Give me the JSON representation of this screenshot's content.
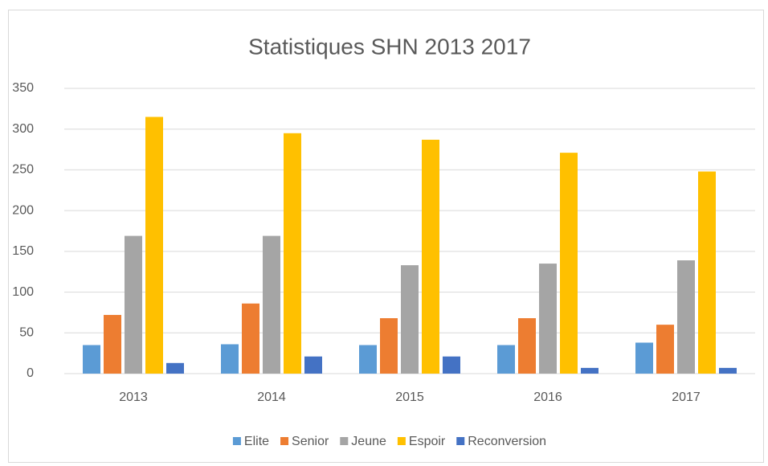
{
  "chart_data": {
    "type": "bar",
    "title": "Statistiques SHN 2013 2017",
    "categories": [
      "2013",
      "2014",
      "2015",
      "2016",
      "2017"
    ],
    "series": [
      {
        "name": "Elite",
        "color": "#5b9bd5",
        "values": [
          35,
          36,
          35,
          35,
          38
        ]
      },
      {
        "name": "Senior",
        "color": "#ed7d31",
        "values": [
          72,
          86,
          68,
          68,
          60
        ]
      },
      {
        "name": "Jeune",
        "color": "#a5a5a5",
        "values": [
          169,
          169,
          133,
          135,
          139
        ]
      },
      {
        "name": "Espoir",
        "color": "#ffc000",
        "values": [
          315,
          295,
          287,
          271,
          248
        ]
      },
      {
        "name": "Reconversion",
        "color": "#4472c4",
        "values": [
          13,
          21,
          21,
          7,
          7
        ]
      }
    ],
    "ylim": [
      0,
      350
    ],
    "yticks": [
      0,
      50,
      100,
      150,
      200,
      250,
      300,
      350
    ],
    "grid": true,
    "legend": "bottom"
  }
}
